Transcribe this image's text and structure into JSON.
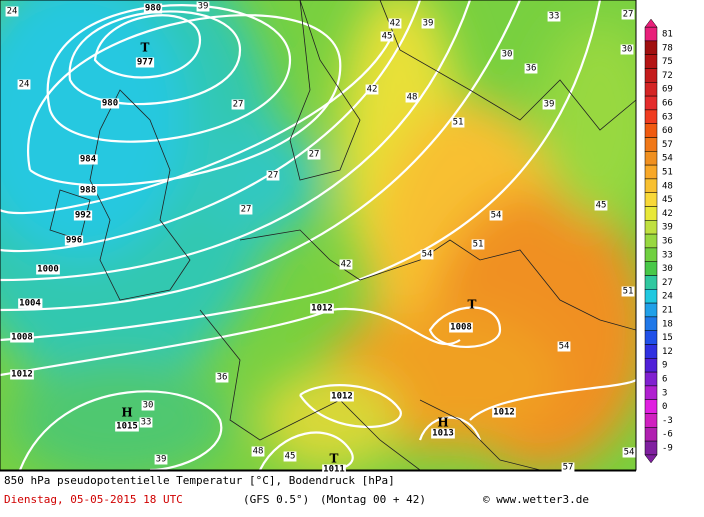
{
  "map": {
    "isobar_labels": [
      "980",
      "977",
      "980",
      "984",
      "988",
      "992",
      "996",
      "1000",
      "1004",
      "1008",
      "1012",
      "1012",
      "1008",
      "1012",
      "1012",
      "1015",
      "1013",
      "1011"
    ],
    "markers": [
      "T",
      "T",
      "H",
      "H",
      "T"
    ],
    "temperature_labels": [
      "24",
      "39",
      "42",
      "39",
      "45",
      "33",
      "27",
      "30",
      "30",
      "36",
      "39",
      "42",
      "48",
      "51",
      "27",
      "27",
      "27",
      "27",
      "24",
      "42",
      "54",
      "51",
      "54",
      "54",
      "36",
      "30",
      "33",
      "48",
      "45",
      "39",
      "57",
      "54",
      "51",
      "45"
    ]
  },
  "colorbar": {
    "ticks": [
      {
        "value": 81,
        "color": "#e8207a"
      },
      {
        "value": 78,
        "color": "#a01010"
      },
      {
        "value": 75,
        "color": "#b41414"
      },
      {
        "value": 72,
        "color": "#c41c1c"
      },
      {
        "value": 69,
        "color": "#d42424"
      },
      {
        "value": 66,
        "color": "#e42c2c"
      },
      {
        "value": 63,
        "color": "#f03c20"
      },
      {
        "value": 60,
        "color": "#f05a10"
      },
      {
        "value": 57,
        "color": "#f07818"
      },
      {
        "value": 54,
        "color": "#f09020"
      },
      {
        "value": 51,
        "color": "#f8a828"
      },
      {
        "value": 48,
        "color": "#f8c030"
      },
      {
        "value": 45,
        "color": "#f8d838"
      },
      {
        "value": 42,
        "color": "#e8e838"
      },
      {
        "value": 39,
        "color": "#c0e040"
      },
      {
        "value": 36,
        "color": "#98d840"
      },
      {
        "value": 33,
        "color": "#70d040"
      },
      {
        "value": 30,
        "color": "#48c848"
      },
      {
        "value": 27,
        "color": "#30c8a0"
      },
      {
        "value": 24,
        "color": "#20c8e0"
      },
      {
        "value": 21,
        "color": "#20a0e8"
      },
      {
        "value": 18,
        "color": "#2078e8"
      },
      {
        "value": 15,
        "color": "#2050e8"
      },
      {
        "value": 12,
        "color": "#3030e0"
      },
      {
        "value": 9,
        "color": "#5020d8"
      },
      {
        "value": 6,
        "color": "#8020d0"
      },
      {
        "value": 3,
        "color": "#b020d0"
      },
      {
        "value": 0,
        "color": "#e020e0"
      },
      {
        "value": -3,
        "color": "#d020c0"
      },
      {
        "value": -6,
        "color": "#b020b0"
      },
      {
        "value": -9,
        "color": "#8020a0"
      }
    ]
  },
  "footer": {
    "title": "850 hPa pseudopotentielle Temperatur [°C], Bodendruck [hPa]",
    "date": "Dienstag, 05-05-2015  18 UTC",
    "model": "(GFS 0.5°)",
    "run": "(Montag 00 + 42)",
    "credit": "© www.wetter3.de"
  }
}
